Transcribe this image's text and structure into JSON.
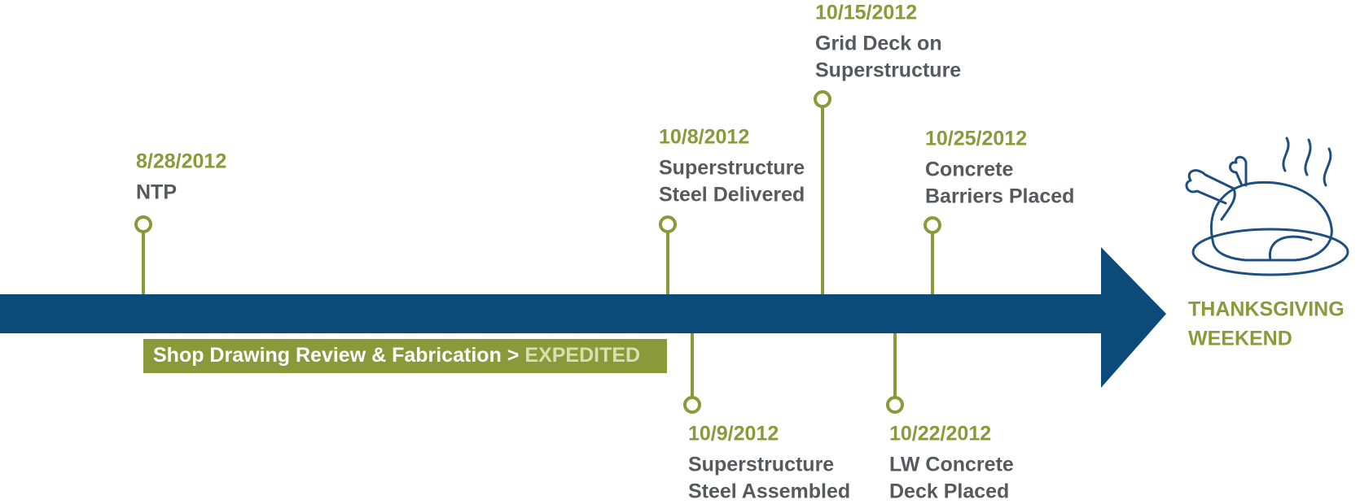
{
  "milestones": [
    {
      "date": "8/28/2012",
      "label": [
        "NTP"
      ]
    },
    {
      "date": "10/8/2012",
      "label": [
        "Superstructure",
        "Steel Delivered"
      ]
    },
    {
      "date": "10/9/2012",
      "label": [
        "Superstructure",
        "Steel Assembled"
      ]
    },
    {
      "date": "10/15/2012",
      "label": [
        "Grid Deck on",
        "Superstructure"
      ]
    },
    {
      "date": "10/22/2012",
      "label": [
        "LW Concrete",
        "Deck Placed"
      ]
    },
    {
      "date": "10/25/2012",
      "label": [
        "Concrete",
        "Barriers Placed"
      ]
    }
  ],
  "phase_bar": {
    "text": "Shop Drawing Review & Fabrication >",
    "highlight": "EXPEDITED"
  },
  "end_label": [
    "THANKSGIVING",
    "WEEKEND"
  ]
}
